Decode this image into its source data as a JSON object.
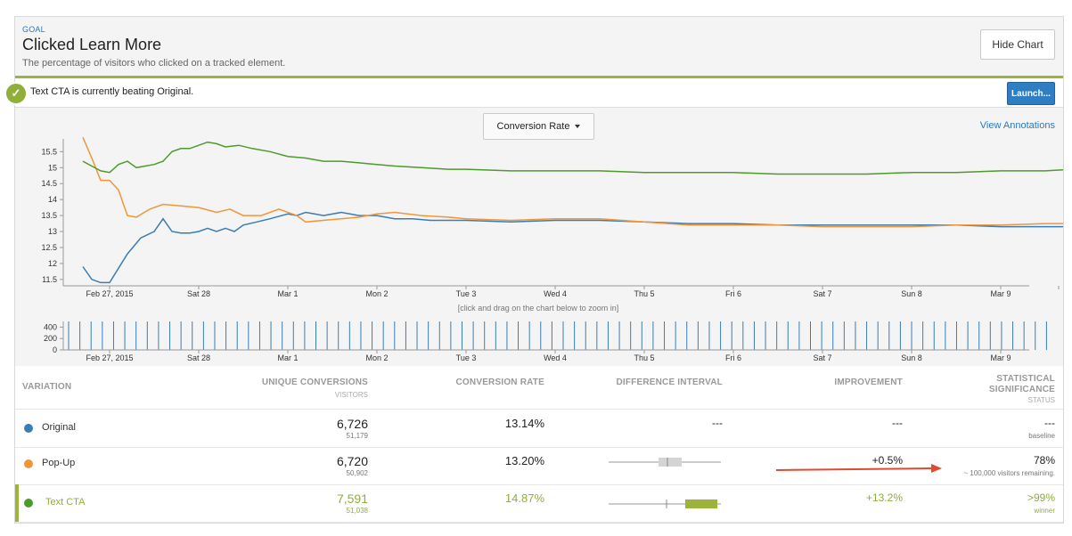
{
  "header": {
    "goal_label": "GOAL",
    "title": "Clicked Learn More",
    "description": "The percentage of visitors who clicked on a tracked element.",
    "hide_chart_label": "Hide Chart"
  },
  "banner": {
    "text": "Text CTA is currently beating Original.",
    "launch_label": "Launch..."
  },
  "chart_controls": {
    "metric_select": "Conversion Rate",
    "view_annotations": "View Annotations",
    "zoom_hint": "[click and drag on the chart below to zoom in]"
  },
  "colors": {
    "original": "#3a7db4",
    "popup": "#f0963a",
    "textcta": "#4f9a2e",
    "accent_green": "#9cb43b",
    "launch_blue": "#2f7dc2"
  },
  "chart_data": [
    {
      "type": "line",
      "x_tick_labels": [
        "Feb 27, 2015",
        "Sat 28",
        "Mar 1",
        "Mon 2",
        "Tue 3",
        "Wed 4",
        "Thu 5",
        "Fri 6",
        "Sat 7",
        "Sun 8",
        "Mar 9"
      ],
      "y_tick_labels": [
        "11.5",
        "12",
        "12.5",
        "13",
        "13.5",
        "14",
        "14.5",
        "15",
        "15.5"
      ],
      "ylim": [
        11.3,
        15.9
      ],
      "x_range_days": [
        0,
        11.3
      ],
      "series": [
        {
          "name": "Original",
          "color": "#3a7db4",
          "points": [
            [
              -0.3,
              11.9
            ],
            [
              -0.2,
              11.5
            ],
            [
              -0.1,
              11.4
            ],
            [
              0,
              11.4
            ],
            [
              0.2,
              12.3
            ],
            [
              0.35,
              12.8
            ],
            [
              0.5,
              13.0
            ],
            [
              0.6,
              13.4
            ],
            [
              0.7,
              13.0
            ],
            [
              0.8,
              12.95
            ],
            [
              0.9,
              12.95
            ],
            [
              1.0,
              13.0
            ],
            [
              1.1,
              13.1
            ],
            [
              1.2,
              13.0
            ],
            [
              1.3,
              13.1
            ],
            [
              1.4,
              13.0
            ],
            [
              1.5,
              13.2
            ],
            [
              1.65,
              13.3
            ],
            [
              1.8,
              13.4
            ],
            [
              2.0,
              13.55
            ],
            [
              2.1,
              13.5
            ],
            [
              2.2,
              13.6
            ],
            [
              2.3,
              13.55
            ],
            [
              2.4,
              13.5
            ],
            [
              2.6,
              13.6
            ],
            [
              2.8,
              13.5
            ],
            [
              3.0,
              13.5
            ],
            [
              3.2,
              13.4
            ],
            [
              3.4,
              13.4
            ],
            [
              3.6,
              13.35
            ],
            [
              4,
              13.35
            ],
            [
              4.5,
              13.3
            ],
            [
              5,
              13.35
            ],
            [
              5.5,
              13.35
            ],
            [
              6,
              13.3
            ],
            [
              6.5,
              13.25
            ],
            [
              7,
              13.25
            ],
            [
              7.5,
              13.2
            ],
            [
              8,
              13.2
            ],
            [
              8.5,
              13.2
            ],
            [
              9,
              13.2
            ],
            [
              9.5,
              13.2
            ],
            [
              10,
              13.15
            ],
            [
              10.5,
              13.15
            ],
            [
              10.8,
              13.15
            ],
            [
              11.2,
              13.1
            ]
          ]
        },
        {
          "name": "Pop-Up",
          "color": "#f0963a",
          "points": [
            [
              -0.3,
              15.95
            ],
            [
              -0.2,
              15.3
            ],
            [
              -0.1,
              14.6
            ],
            [
              0,
              14.6
            ],
            [
              0.1,
              14.3
            ],
            [
              0.2,
              13.5
            ],
            [
              0.3,
              13.45
            ],
            [
              0.45,
              13.7
            ],
            [
              0.6,
              13.85
            ],
            [
              0.8,
              13.8
            ],
            [
              1.0,
              13.75
            ],
            [
              1.2,
              13.6
            ],
            [
              1.35,
              13.7
            ],
            [
              1.5,
              13.5
            ],
            [
              1.7,
              13.5
            ],
            [
              1.9,
              13.7
            ],
            [
              2.1,
              13.5
            ],
            [
              2.2,
              13.3
            ],
            [
              2.4,
              13.35
            ],
            [
              2.6,
              13.4
            ],
            [
              2.8,
              13.45
            ],
            [
              3.0,
              13.55
            ],
            [
              3.2,
              13.6
            ],
            [
              3.5,
              13.5
            ],
            [
              3.8,
              13.45
            ],
            [
              4,
              13.4
            ],
            [
              4.5,
              13.35
            ],
            [
              5,
              13.4
            ],
            [
              5.5,
              13.4
            ],
            [
              6,
              13.3
            ],
            [
              6.5,
              13.2
            ],
            [
              7,
              13.2
            ],
            [
              7.5,
              13.2
            ],
            [
              8,
              13.15
            ],
            [
              8.5,
              13.15
            ],
            [
              9,
              13.15
            ],
            [
              9.5,
              13.2
            ],
            [
              10,
              13.2
            ],
            [
              10.5,
              13.25
            ],
            [
              10.8,
              13.25
            ],
            [
              11.2,
              13.2
            ]
          ]
        },
        {
          "name": "Text CTA",
          "color": "#4f9a2e",
          "points": [
            [
              -0.3,
              15.2
            ],
            [
              -0.1,
              14.9
            ],
            [
              0,
              14.85
            ],
            [
              0.1,
              15.1
            ],
            [
              0.2,
              15.2
            ],
            [
              0.3,
              15.0
            ],
            [
              0.4,
              15.05
            ],
            [
              0.5,
              15.1
            ],
            [
              0.6,
              15.2
            ],
            [
              0.7,
              15.5
            ],
            [
              0.8,
              15.6
            ],
            [
              0.9,
              15.6
            ],
            [
              1.0,
              15.7
            ],
            [
              1.1,
              15.8
            ],
            [
              1.2,
              15.75
            ],
            [
              1.3,
              15.65
            ],
            [
              1.45,
              15.7
            ],
            [
              1.6,
              15.6
            ],
            [
              1.8,
              15.5
            ],
            [
              2.0,
              15.35
            ],
            [
              2.2,
              15.3
            ],
            [
              2.4,
              15.2
            ],
            [
              2.6,
              15.2
            ],
            [
              2.8,
              15.15
            ],
            [
              3.0,
              15.1
            ],
            [
              3.2,
              15.05
            ],
            [
              3.5,
              15.0
            ],
            [
              3.8,
              14.95
            ],
            [
              4,
              14.95
            ],
            [
              4.5,
              14.9
            ],
            [
              5,
              14.9
            ],
            [
              5.5,
              14.9
            ],
            [
              6,
              14.85
            ],
            [
              6.5,
              14.85
            ],
            [
              7,
              14.85
            ],
            [
              7.5,
              14.8
            ],
            [
              8,
              14.8
            ],
            [
              8.5,
              14.8
            ],
            [
              9,
              14.85
            ],
            [
              9.5,
              14.85
            ],
            [
              10,
              14.9
            ],
            [
              10.5,
              14.9
            ],
            [
              10.8,
              14.95
            ],
            [
              11.2,
              14.95
            ]
          ]
        }
      ]
    },
    {
      "type": "bar",
      "y_tick_labels": [
        "400",
        "200",
        "0"
      ],
      "x_tick_labels": [
        "Feb 27, 2015",
        "Sat 28",
        "Mar 1",
        "Mon 2",
        "Tue 3",
        "Wed 4",
        "Thu 5",
        "Fri 6",
        "Sat 7",
        "Sun 8",
        "Mar 9"
      ],
      "ylim": [
        0,
        500
      ],
      "bar_value": 500,
      "bar_count": 88,
      "color": "#3a7db4"
    }
  ],
  "table": {
    "headers": {
      "variation": "VARIATION",
      "unique_conversions": "UNIQUE CONVERSIONS",
      "visitors": "VISITORS",
      "conversion_rate": "CONVERSION RATE",
      "difference_interval": "DIFFERENCE INTERVAL",
      "improvement": "IMPROVEMENT",
      "statistical": "STATISTICAL",
      "significance": "SIGNIFICANCE",
      "status": "STATUS"
    },
    "rows": [
      {
        "name": "Original",
        "color": "#3a7db4",
        "conversions": "6,726",
        "visitors": "51,179",
        "rate": "13.14%",
        "interval": "---",
        "improvement": "---",
        "significance": "---",
        "status": "baseline"
      },
      {
        "name": "Pop-Up",
        "color": "#f0963a",
        "conversions": "6,720",
        "visitors": "50,902",
        "rate": "13.20%",
        "interval": "",
        "improvement": "+0.5%",
        "significance": "78%",
        "status": "~ 100,000 visitors remaining."
      },
      {
        "name": "Text CTA",
        "color": "#4f9a2e",
        "conversions": "7,591",
        "visitors": "51,038",
        "rate": "14.87%",
        "interval": "",
        "improvement": "+13.2%",
        "significance": ">99%",
        "status": "winner"
      }
    ]
  }
}
